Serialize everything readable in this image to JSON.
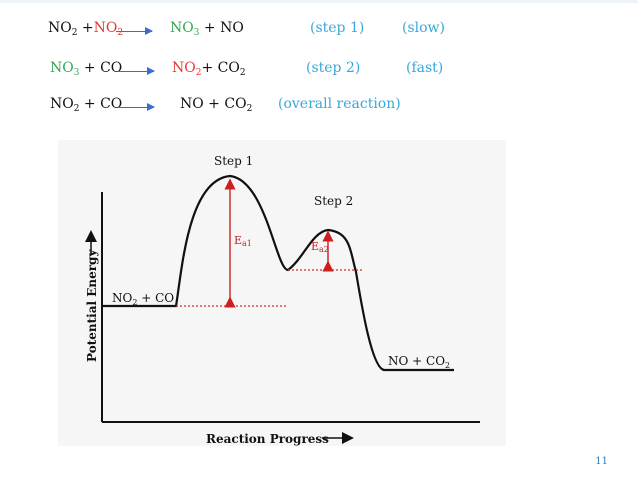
{
  "equations": {
    "step1": {
      "r1": "NO",
      "r1_sub": "2",
      "plus_a": " +",
      "r2": "NO",
      "r2_sub": "2",
      "p1": "NO",
      "p1_sub": "3",
      "p2": " + NO",
      "tag": "(step 1)",
      "rate": "(slow)"
    },
    "step2": {
      "r1": "NO",
      "r1_sub": "3",
      "r2": " + CO",
      "p1": "NO",
      "p1_sub": "2",
      "p2": "+ CO",
      "p2_sub": "2",
      "tag": "(step 2)",
      "rate": "(fast)"
    },
    "overall": {
      "r1": "NO",
      "r1_sub": "2",
      "r2": " + CO",
      "p1": "NO  +  CO",
      "p1_sub": "2",
      "tag": "(overall reaction)"
    }
  },
  "diagram": {
    "ylabel": "Potential Energy",
    "xlabel": "Reaction Progress",
    "step1_label": "Step 1",
    "step2_label": "Step 2",
    "ea1_main": "E",
    "ea1_sub": "a1",
    "ea2_main": "E",
    "ea2_sub": "a2",
    "reactant_main": "NO",
    "reactant_sub": "2",
    "reactant_rest": " + CO",
    "product_main": "NO  +  CO",
    "product_sub": "2"
  },
  "slide_number": "11",
  "colors": {
    "green": "#34a853",
    "red": "#e53935",
    "blue": "#3aa6d9",
    "arrow": "#3b6ccf",
    "ea_arrow": "#cc1f1f",
    "dotted": "#d32f2f"
  }
}
